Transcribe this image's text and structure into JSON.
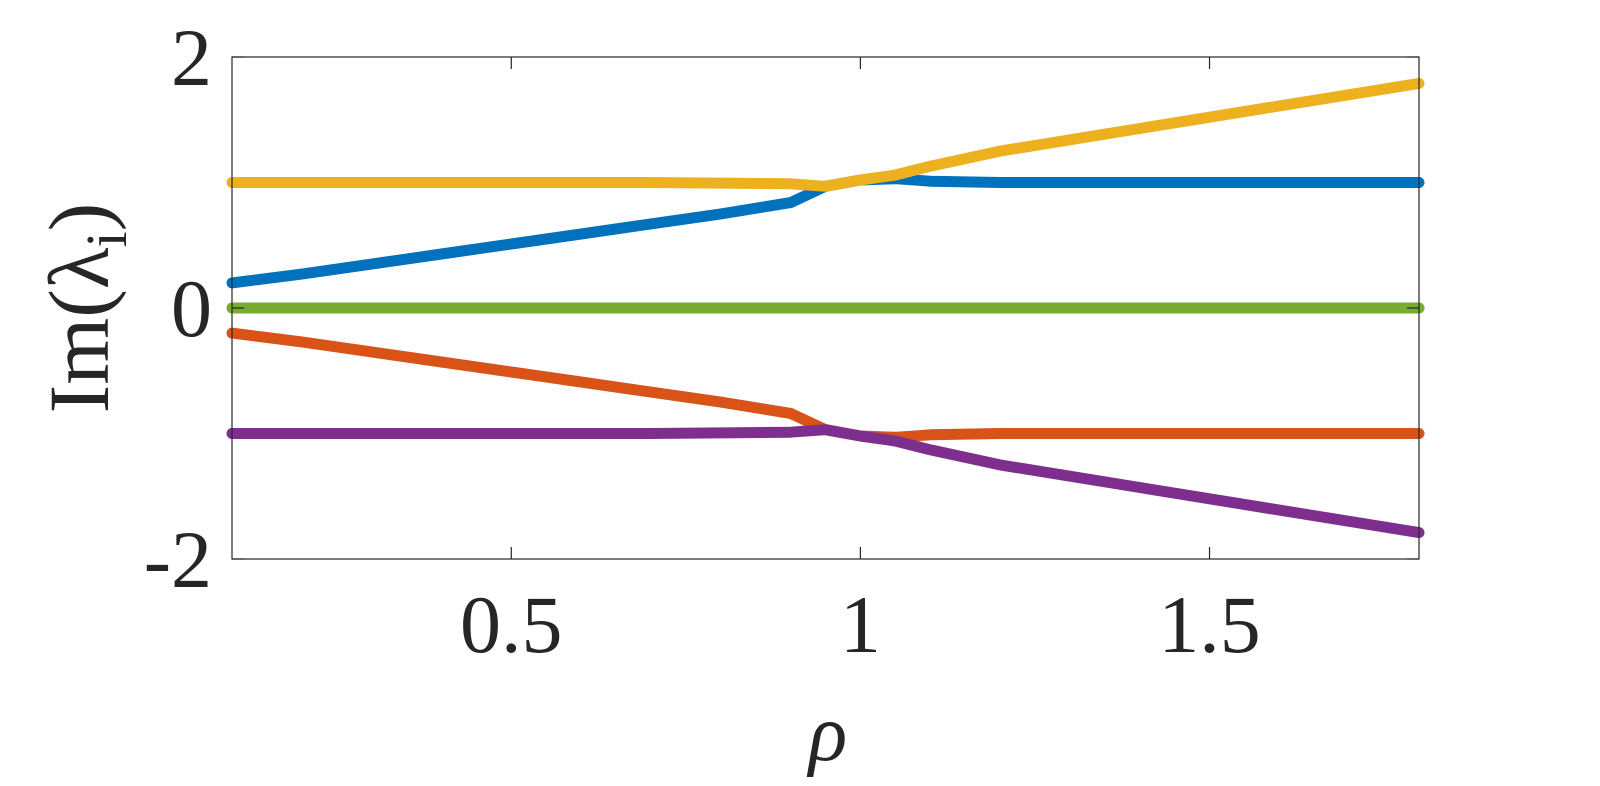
{
  "chart_data": {
    "type": "line",
    "title": "",
    "xlabel": "ρ",
    "ylabel_main": "Im(λ",
    "ylabel_sub": "i",
    "ylabel_close": ")",
    "xlim": [
      0.1,
      1.8
    ],
    "ylim": [
      -2,
      2
    ],
    "xticks": [
      0.5,
      1,
      1.5
    ],
    "xtick_labels": [
      "0.5",
      "1",
      "1.5"
    ],
    "yticks": [
      -2,
      0,
      2
    ],
    "ytick_labels": [
      "-2",
      "0",
      "2"
    ],
    "grid": false,
    "legend": "none",
    "series": [
      {
        "color": "#0072BD",
        "x": [
          0.1,
          0.2,
          0.3,
          0.4,
          0.5,
          0.6,
          0.7,
          0.8,
          0.9,
          0.95,
          1.0,
          1.05,
          1.1,
          1.2,
          1.4,
          1.6,
          1.8
        ],
        "y": [
          0.2,
          0.27,
          0.35,
          0.43,
          0.51,
          0.59,
          0.67,
          0.75,
          0.84,
          0.97,
          1.02,
          1.03,
          1.01,
          1.0,
          1.0,
          1.0,
          1.0
        ]
      },
      {
        "color": "#D95319",
        "x": [
          0.1,
          0.2,
          0.3,
          0.4,
          0.5,
          0.6,
          0.7,
          0.8,
          0.9,
          0.95,
          1.0,
          1.05,
          1.1,
          1.2,
          1.4,
          1.6,
          1.8
        ],
        "y": [
          -0.2,
          -0.27,
          -0.35,
          -0.43,
          -0.51,
          -0.59,
          -0.67,
          -0.75,
          -0.84,
          -0.97,
          -1.02,
          -1.03,
          -1.01,
          -1.0,
          -1.0,
          -1.0,
          -1.0
        ]
      },
      {
        "color": "#EDB120",
        "x": [
          0.1,
          0.3,
          0.5,
          0.7,
          0.9,
          0.95,
          1.0,
          1.05,
          1.1,
          1.2,
          1.4,
          1.6,
          1.8
        ],
        "y": [
          1.0,
          1.0,
          1.0,
          1.0,
          0.99,
          0.97,
          1.02,
          1.06,
          1.13,
          1.25,
          1.43,
          1.61,
          1.79
        ]
      },
      {
        "color": "#7E2F8E",
        "x": [
          0.1,
          0.3,
          0.5,
          0.7,
          0.9,
          0.95,
          1.0,
          1.05,
          1.1,
          1.2,
          1.4,
          1.6,
          1.8
        ],
        "y": [
          -1.0,
          -1.0,
          -1.0,
          -1.0,
          -0.99,
          -0.97,
          -1.02,
          -1.06,
          -1.13,
          -1.25,
          -1.43,
          -1.61,
          -1.79
        ]
      },
      {
        "color": "#77AC30",
        "x": [
          0.1,
          1.8
        ],
        "y": [
          0.0,
          0.0
        ]
      }
    ]
  }
}
